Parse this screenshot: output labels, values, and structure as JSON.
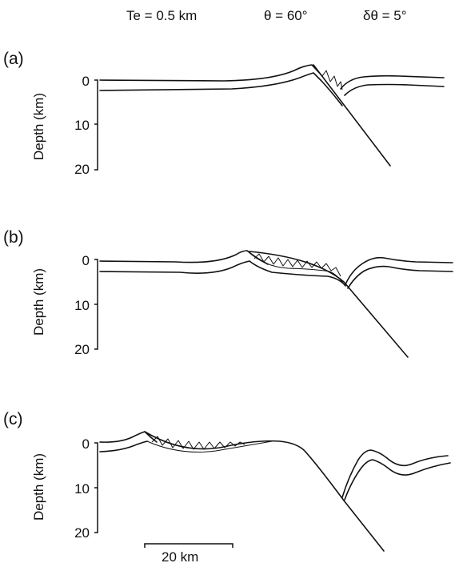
{
  "header": {
    "te": "Te = 0.5 km",
    "theta": "θ = 60°",
    "dtheta": "δθ = 5°"
  },
  "panels": [
    {
      "label": "(a)",
      "ylabel": "Depth (km)",
      "ticks": [
        "0",
        "10",
        "20"
      ]
    },
    {
      "label": "(b)",
      "ylabel": "Depth (km)",
      "ticks": [
        "0",
        "10",
        "20"
      ]
    },
    {
      "label": "(c)",
      "ylabel": "Depth (km)",
      "ticks": [
        "0",
        "10",
        "20"
      ]
    }
  ],
  "scale_bar": {
    "label": "20 km"
  }
}
